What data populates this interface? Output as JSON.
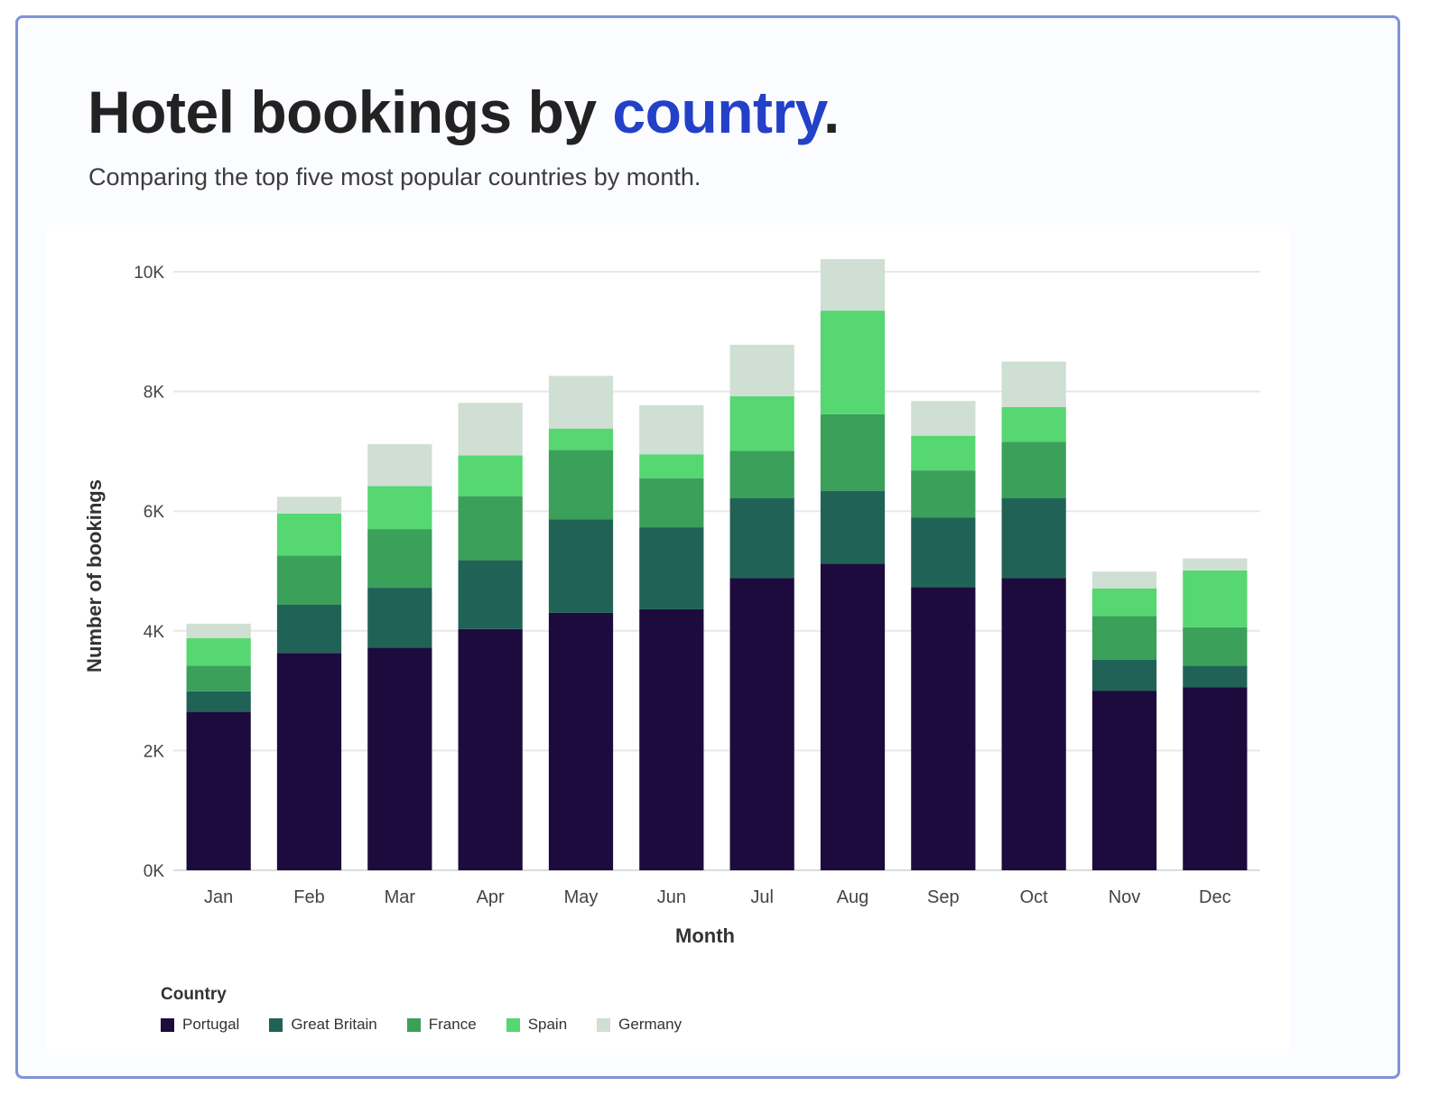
{
  "header": {
    "title_prefix": "Hotel bookings by ",
    "title_accent": "country",
    "title_suffix": ".",
    "subtitle": "Comparing the top five most popular countries by month."
  },
  "colors": {
    "accent": "#2340c9",
    "border": "#7f93d6"
  },
  "legend": {
    "title": "Country"
  },
  "chart_data": {
    "type": "bar",
    "stacked": true,
    "title": "Hotel bookings by country.",
    "subtitle": "Comparing the top five most popular countries by month.",
    "xlabel": "Month",
    "ylabel": "Number of bookings",
    "ylim": [
      0,
      10000
    ],
    "yticks": [
      0,
      2000,
      4000,
      6000,
      8000,
      10000
    ],
    "ytick_labels": [
      "0K",
      "2K",
      "4K",
      "6K",
      "8K",
      "10K"
    ],
    "grid": true,
    "legend_title": "Country",
    "legend_position": "bottom-left",
    "categories": [
      "Jan",
      "Feb",
      "Mar",
      "Apr",
      "May",
      "Jun",
      "Jul",
      "Aug",
      "Sep",
      "Oct",
      "Nov",
      "Dec"
    ],
    "series": [
      {
        "name": "Portugal",
        "color": "#1d0b3d",
        "values": [
          2650,
          3630,
          3720,
          4030,
          4300,
          4360,
          4880,
          5120,
          4730,
          4880,
          3000,
          3060
        ]
      },
      {
        "name": "Great Britain",
        "color": "#206356",
        "values": [
          340,
          810,
          1000,
          1150,
          1560,
          1370,
          1340,
          1220,
          1160,
          1340,
          520,
          360
        ]
      },
      {
        "name": "France",
        "color": "#3aa05a",
        "values": [
          430,
          820,
          980,
          1070,
          1160,
          820,
          790,
          1280,
          790,
          940,
          730,
          640
        ]
      },
      {
        "name": "Spain",
        "color": "#56d771",
        "values": [
          460,
          700,
          720,
          680,
          360,
          400,
          910,
          1730,
          580,
          580,
          460,
          950
        ]
      },
      {
        "name": "Germany",
        "color": "#cfdfd3",
        "values": [
          240,
          280,
          700,
          880,
          880,
          820,
          860,
          860,
          580,
          760,
          280,
          200
        ]
      }
    ]
  }
}
